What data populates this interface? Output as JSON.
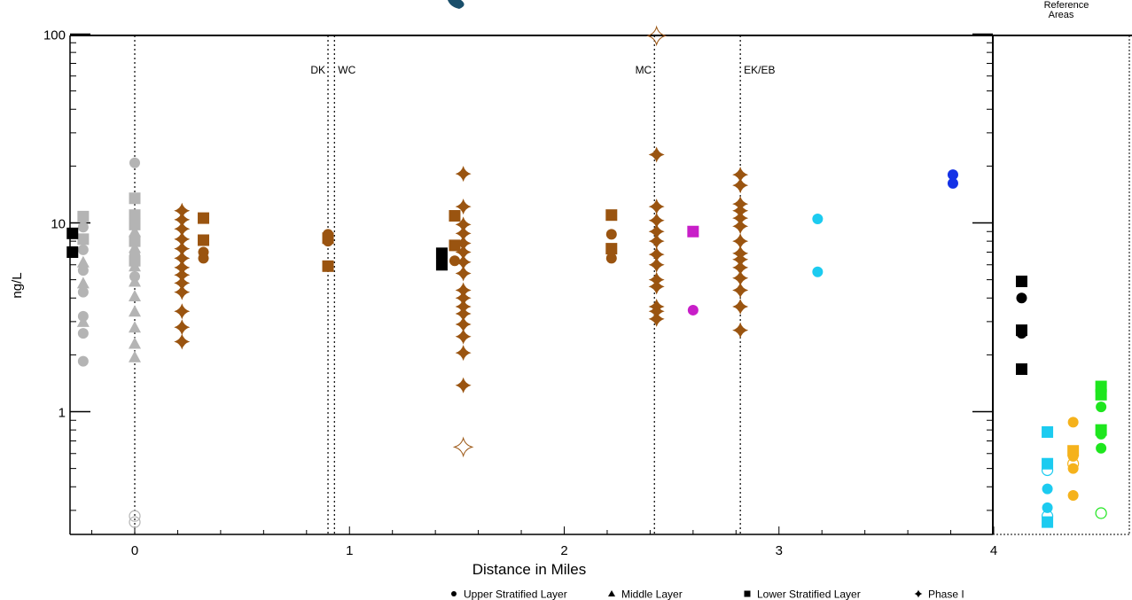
{
  "chart_data": {
    "type": "scatter",
    "title": "",
    "xlabel": "Distance in Miles",
    "ylabel": "ng/L",
    "y_scale": "log",
    "xlim": [
      -0.3,
      4.0
    ],
    "ylim": [
      0.22,
      105
    ],
    "x_ticks": [
      0,
      1,
      2,
      3,
      4
    ],
    "y_ticks": [
      1,
      10,
      100
    ],
    "reference_panel_label": "Reference Areas",
    "reference_lines": [
      {
        "x": 0.0,
        "label": ""
      },
      {
        "x": 0.9,
        "label": "DK"
      },
      {
        "x": 0.93,
        "label": "WC"
      },
      {
        "x": 2.42,
        "label": "MC"
      },
      {
        "x": 2.82,
        "label": "EK/EB"
      }
    ],
    "legend": [
      {
        "marker": "circle",
        "label": "Upper Stratified Layer"
      },
      {
        "marker": "triangle",
        "label": "Middle Layer"
      },
      {
        "marker": "square",
        "label": "Lower Stratified Layer"
      },
      {
        "marker": "star",
        "label": "Phase I"
      }
    ],
    "colors": {
      "gray": "#b4b4b4",
      "brown": "#9a5410",
      "black": "#000000",
      "magenta": "#c81ec8",
      "cyan": "#1ccbf0",
      "blue": "#1432e6",
      "orange": "#f5b21c",
      "green": "#1ee61e"
    },
    "series": [
      {
        "color": "gray",
        "marker": "circle",
        "points": [
          [
            -0.24,
            1.85
          ],
          [
            -0.24,
            2.6
          ],
          [
            -0.24,
            3.2
          ],
          [
            -0.24,
            4.3
          ],
          [
            -0.24,
            5.6
          ],
          [
            -0.24,
            7.2
          ],
          [
            -0.24,
            9.5
          ],
          [
            0.0,
            20.8
          ],
          [
            0.0,
            5.2
          ],
          [
            0.0,
            6.8
          ]
        ]
      },
      {
        "color": "gray",
        "marker": "triangle",
        "points": [
          [
            -0.24,
            3.0
          ],
          [
            -0.24,
            4.8
          ],
          [
            -0.24,
            6.2
          ],
          [
            0.0,
            1.95
          ],
          [
            0.0,
            2.3
          ],
          [
            0.0,
            2.8
          ],
          [
            0.0,
            3.4
          ],
          [
            0.0,
            4.1
          ],
          [
            0.0,
            4.9
          ],
          [
            0.0,
            5.9
          ],
          [
            0.0,
            7.4
          ],
          [
            0.0,
            9.0
          ]
        ]
      },
      {
        "color": "gray",
        "marker": "square",
        "points": [
          [
            -0.24,
            10.8
          ],
          [
            -0.24,
            8.2
          ],
          [
            0.0,
            13.5
          ],
          [
            0.0,
            11.0
          ],
          [
            0.0,
            9.8
          ],
          [
            0.0,
            8.0
          ],
          [
            0.0,
            6.3
          ]
        ]
      },
      {
        "color": "gray",
        "marker": "circle-open",
        "points": [
          [
            0.0,
            0.26
          ],
          [
            0.0,
            0.28
          ]
        ]
      },
      {
        "color": "black",
        "marker": "square",
        "points": [
          [
            -0.29,
            8.8
          ],
          [
            -0.29,
            7.0
          ],
          [
            1.43,
            6.9
          ],
          [
            1.43,
            6.0
          ],
          [
            4.13,
            4.9
          ],
          [
            4.13,
            2.7
          ],
          [
            4.13,
            1.68
          ]
        ]
      },
      {
        "color": "black",
        "marker": "circle",
        "points": [
          [
            1.43,
            6.4
          ],
          [
            4.13,
            4.0
          ],
          [
            4.13,
            2.6
          ]
        ]
      },
      {
        "color": "brown",
        "marker": "star",
        "points": [
          [
            0.22,
            11.6
          ],
          [
            0.22,
            10.4
          ],
          [
            0.22,
            9.3
          ],
          [
            0.22,
            8.2
          ],
          [
            0.22,
            7.3
          ],
          [
            0.22,
            6.5
          ],
          [
            0.22,
            5.8
          ],
          [
            0.22,
            5.3
          ],
          [
            0.22,
            4.8
          ],
          [
            0.22,
            4.3
          ],
          [
            0.22,
            3.4
          ],
          [
            0.22,
            2.8
          ],
          [
            0.22,
            2.35
          ],
          [
            1.53,
            18.2
          ],
          [
            1.53,
            12.2
          ],
          [
            1.53,
            9.8
          ],
          [
            1.53,
            8.8
          ],
          [
            1.53,
            7.8
          ],
          [
            1.53,
            7.0
          ],
          [
            1.53,
            6.2
          ],
          [
            1.53,
            5.4
          ],
          [
            1.53,
            4.4
          ],
          [
            1.53,
            4.0
          ],
          [
            1.53,
            3.6
          ],
          [
            1.53,
            3.3
          ],
          [
            1.53,
            2.9
          ],
          [
            1.53,
            2.5
          ],
          [
            1.53,
            2.05
          ],
          [
            1.53,
            1.38
          ],
          [
            2.43,
            23.0
          ],
          [
            2.43,
            12.2
          ],
          [
            2.43,
            10.3
          ],
          [
            2.43,
            9.0
          ],
          [
            2.43,
            8.0
          ],
          [
            2.43,
            6.8
          ],
          [
            2.43,
            6.0
          ],
          [
            2.43,
            5.0
          ],
          [
            2.43,
            4.6
          ],
          [
            2.43,
            3.6
          ],
          [
            2.43,
            3.4
          ],
          [
            2.43,
            3.1
          ],
          [
            2.82,
            18.0
          ],
          [
            2.82,
            15.8
          ],
          [
            2.82,
            12.6
          ],
          [
            2.82,
            11.6
          ],
          [
            2.82,
            10.6
          ],
          [
            2.82,
            9.6
          ],
          [
            2.82,
            8.0
          ],
          [
            2.82,
            6.9
          ],
          [
            2.82,
            6.4
          ],
          [
            2.82,
            5.8
          ],
          [
            2.82,
            5.1
          ],
          [
            2.82,
            4.4
          ],
          [
            2.82,
            3.6
          ],
          [
            2.82,
            2.7
          ]
        ]
      },
      {
        "color": "brown",
        "marker": "star-open",
        "points": [
          [
            2.43,
            98.0
          ],
          [
            1.53,
            0.65
          ]
        ]
      },
      {
        "color": "brown",
        "marker": "square",
        "points": [
          [
            0.32,
            10.6
          ],
          [
            0.32,
            8.1
          ],
          [
            0.9,
            8.3
          ],
          [
            0.9,
            5.9
          ],
          [
            1.49,
            10.9
          ],
          [
            1.49,
            7.6
          ],
          [
            2.22,
            11.0
          ],
          [
            2.22,
            7.3
          ]
        ]
      },
      {
        "color": "brown",
        "marker": "circle",
        "points": [
          [
            0.32,
            7.0
          ],
          [
            0.32,
            6.5
          ],
          [
            0.9,
            8.7
          ],
          [
            0.9,
            8.0
          ],
          [
            1.49,
            6.3
          ],
          [
            2.22,
            8.7
          ],
          [
            2.22,
            6.5
          ]
        ]
      },
      {
        "color": "magenta",
        "marker": "square",
        "points": [
          [
            2.6,
            9.0
          ]
        ]
      },
      {
        "color": "magenta",
        "marker": "circle",
        "points": [
          [
            2.6,
            3.45
          ]
        ]
      },
      {
        "color": "cyan",
        "marker": "circle",
        "points": [
          [
            3.18,
            10.5
          ],
          [
            3.18,
            5.5
          ],
          [
            4.25,
            0.39
          ],
          [
            4.25,
            0.31
          ]
        ]
      },
      {
        "color": "cyan",
        "marker": "square",
        "points": [
          [
            4.25,
            0.78
          ],
          [
            4.25,
            0.53
          ],
          [
            4.25,
            0.26
          ]
        ]
      },
      {
        "color": "cyan",
        "marker": "circle-open",
        "points": [
          [
            4.25,
            0.49
          ],
          [
            4.25,
            0.28
          ]
        ]
      },
      {
        "color": "blue",
        "marker": "circle",
        "points": [
          [
            3.81,
            18.0
          ],
          [
            3.81,
            16.2
          ]
        ]
      },
      {
        "color": "orange",
        "marker": "circle",
        "points": [
          [
            4.37,
            0.88
          ],
          [
            4.37,
            0.58
          ],
          [
            4.37,
            0.5
          ],
          [
            4.37,
            0.36
          ]
        ]
      },
      {
        "color": "orange",
        "marker": "square",
        "points": [
          [
            4.37,
            0.62
          ]
        ]
      },
      {
        "color": "orange",
        "marker": "circle-open",
        "points": [
          [
            4.37,
            0.53
          ]
        ]
      },
      {
        "color": "green",
        "marker": "square",
        "points": [
          [
            4.5,
            1.36
          ],
          [
            4.5,
            1.23
          ],
          [
            4.5,
            0.8
          ]
        ]
      },
      {
        "color": "green",
        "marker": "circle",
        "points": [
          [
            4.5,
            1.06
          ],
          [
            4.5,
            0.76
          ],
          [
            4.5,
            0.64
          ]
        ]
      },
      {
        "color": "green",
        "marker": "circle-open",
        "points": [
          [
            4.5,
            0.29
          ]
        ]
      }
    ]
  }
}
